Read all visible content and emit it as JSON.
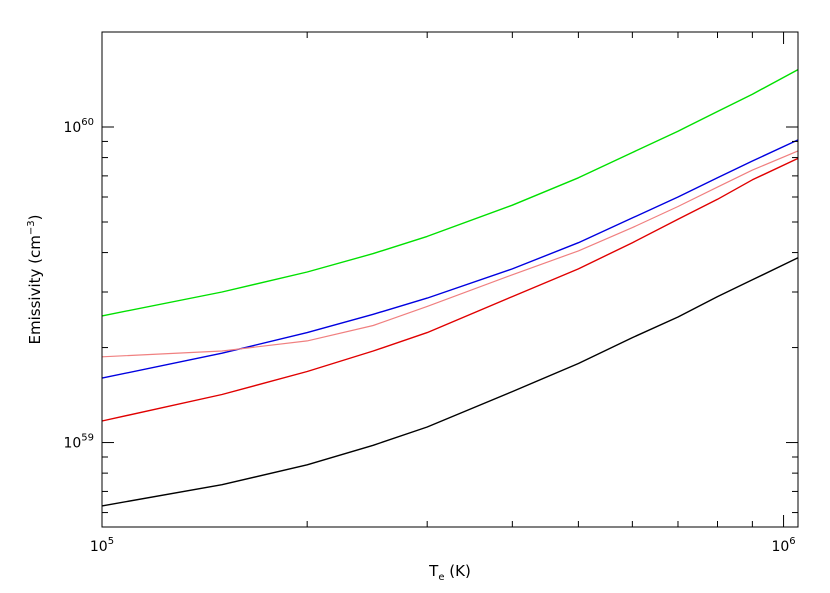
{
  "chart_data": {
    "type": "line",
    "x_scale": "log",
    "y_scale": "log",
    "xlim": [
      100000,
      1050000
    ],
    "ylim": [
      5.4e+58,
      2e+60
    ],
    "xlabel": {
      "base": "T",
      "subscript": "e",
      "unit": " (K)"
    },
    "ylabel": {
      "text": "Emissivity (cm",
      "superscript": "−3",
      "close": ")"
    },
    "x_major_ticks": [
      {
        "value": 100000,
        "base": "10",
        "exp": "5"
      },
      {
        "value": 1000000,
        "base": "10",
        "exp": "6"
      }
    ],
    "y_major_ticks": [
      {
        "value": 1e+59,
        "base": "10",
        "exp": "59"
      },
      {
        "value": 1e+60,
        "base": "10",
        "exp": "60"
      }
    ],
    "grid": false,
    "legend": "none",
    "series": [
      {
        "color": "#00e000",
        "width": 1.4,
        "x": [
          100000,
          150000,
          200000,
          250000,
          300000,
          400000,
          500000,
          600000,
          700000,
          800000,
          900000,
          1050000
        ],
        "y": [
          2.52e+59,
          3e+59,
          3.47e+59,
          3.97e+59,
          4.5e+59,
          5.65e+59,
          6.9e+59,
          8.3e+59,
          9.7e+59,
          1.12e+60,
          1.27e+60,
          1.52e+60
        ]
      },
      {
        "color": "#0000e0",
        "width": 1.4,
        "x": [
          100000,
          150000,
          200000,
          250000,
          300000,
          400000,
          500000,
          600000,
          700000,
          800000,
          900000,
          1050000
        ],
        "y": [
          1.6e+59,
          1.92e+59,
          2.23e+59,
          2.55e+59,
          2.87e+59,
          3.55e+59,
          4.3e+59,
          5.15e+59,
          6e+59,
          6.9e+59,
          7.8e+59,
          9.1e+59
        ]
      },
      {
        "color": "#f08080",
        "width": 1.2,
        "x": [
          100000,
          150000,
          200000,
          250000,
          300000,
          400000,
          500000,
          600000,
          700000,
          800000,
          900000,
          1050000
        ],
        "y": [
          1.87e+59,
          1.95e+59,
          2.1e+59,
          2.35e+59,
          2.7e+59,
          3.4e+59,
          4.05e+59,
          4.8e+59,
          5.6e+59,
          6.45e+59,
          7.3e+59,
          8.4e+59
        ]
      },
      {
        "color": "#e00000",
        "width": 1.4,
        "x": [
          100000,
          150000,
          200000,
          250000,
          300000,
          400000,
          500000,
          600000,
          700000,
          800000,
          900000,
          1050000
        ],
        "y": [
          1.17e+59,
          1.42e+59,
          1.68e+59,
          1.95e+59,
          2.23e+59,
          2.9e+59,
          3.55e+59,
          4.3e+59,
          5.1e+59,
          5.9e+59,
          6.8e+59,
          7.95e+59
        ]
      },
      {
        "color": "#000000",
        "width": 1.4,
        "x": [
          100000,
          150000,
          200000,
          250000,
          300000,
          400000,
          500000,
          600000,
          700000,
          800000,
          900000,
          1050000
        ],
        "y": [
          6.3e+58,
          7.35e+58,
          8.5e+58,
          9.8e+58,
          1.12e+59,
          1.45e+59,
          1.78e+59,
          2.15e+59,
          2.5e+59,
          2.9e+59,
          3.28e+59,
          3.85e+59
        ]
      }
    ]
  }
}
